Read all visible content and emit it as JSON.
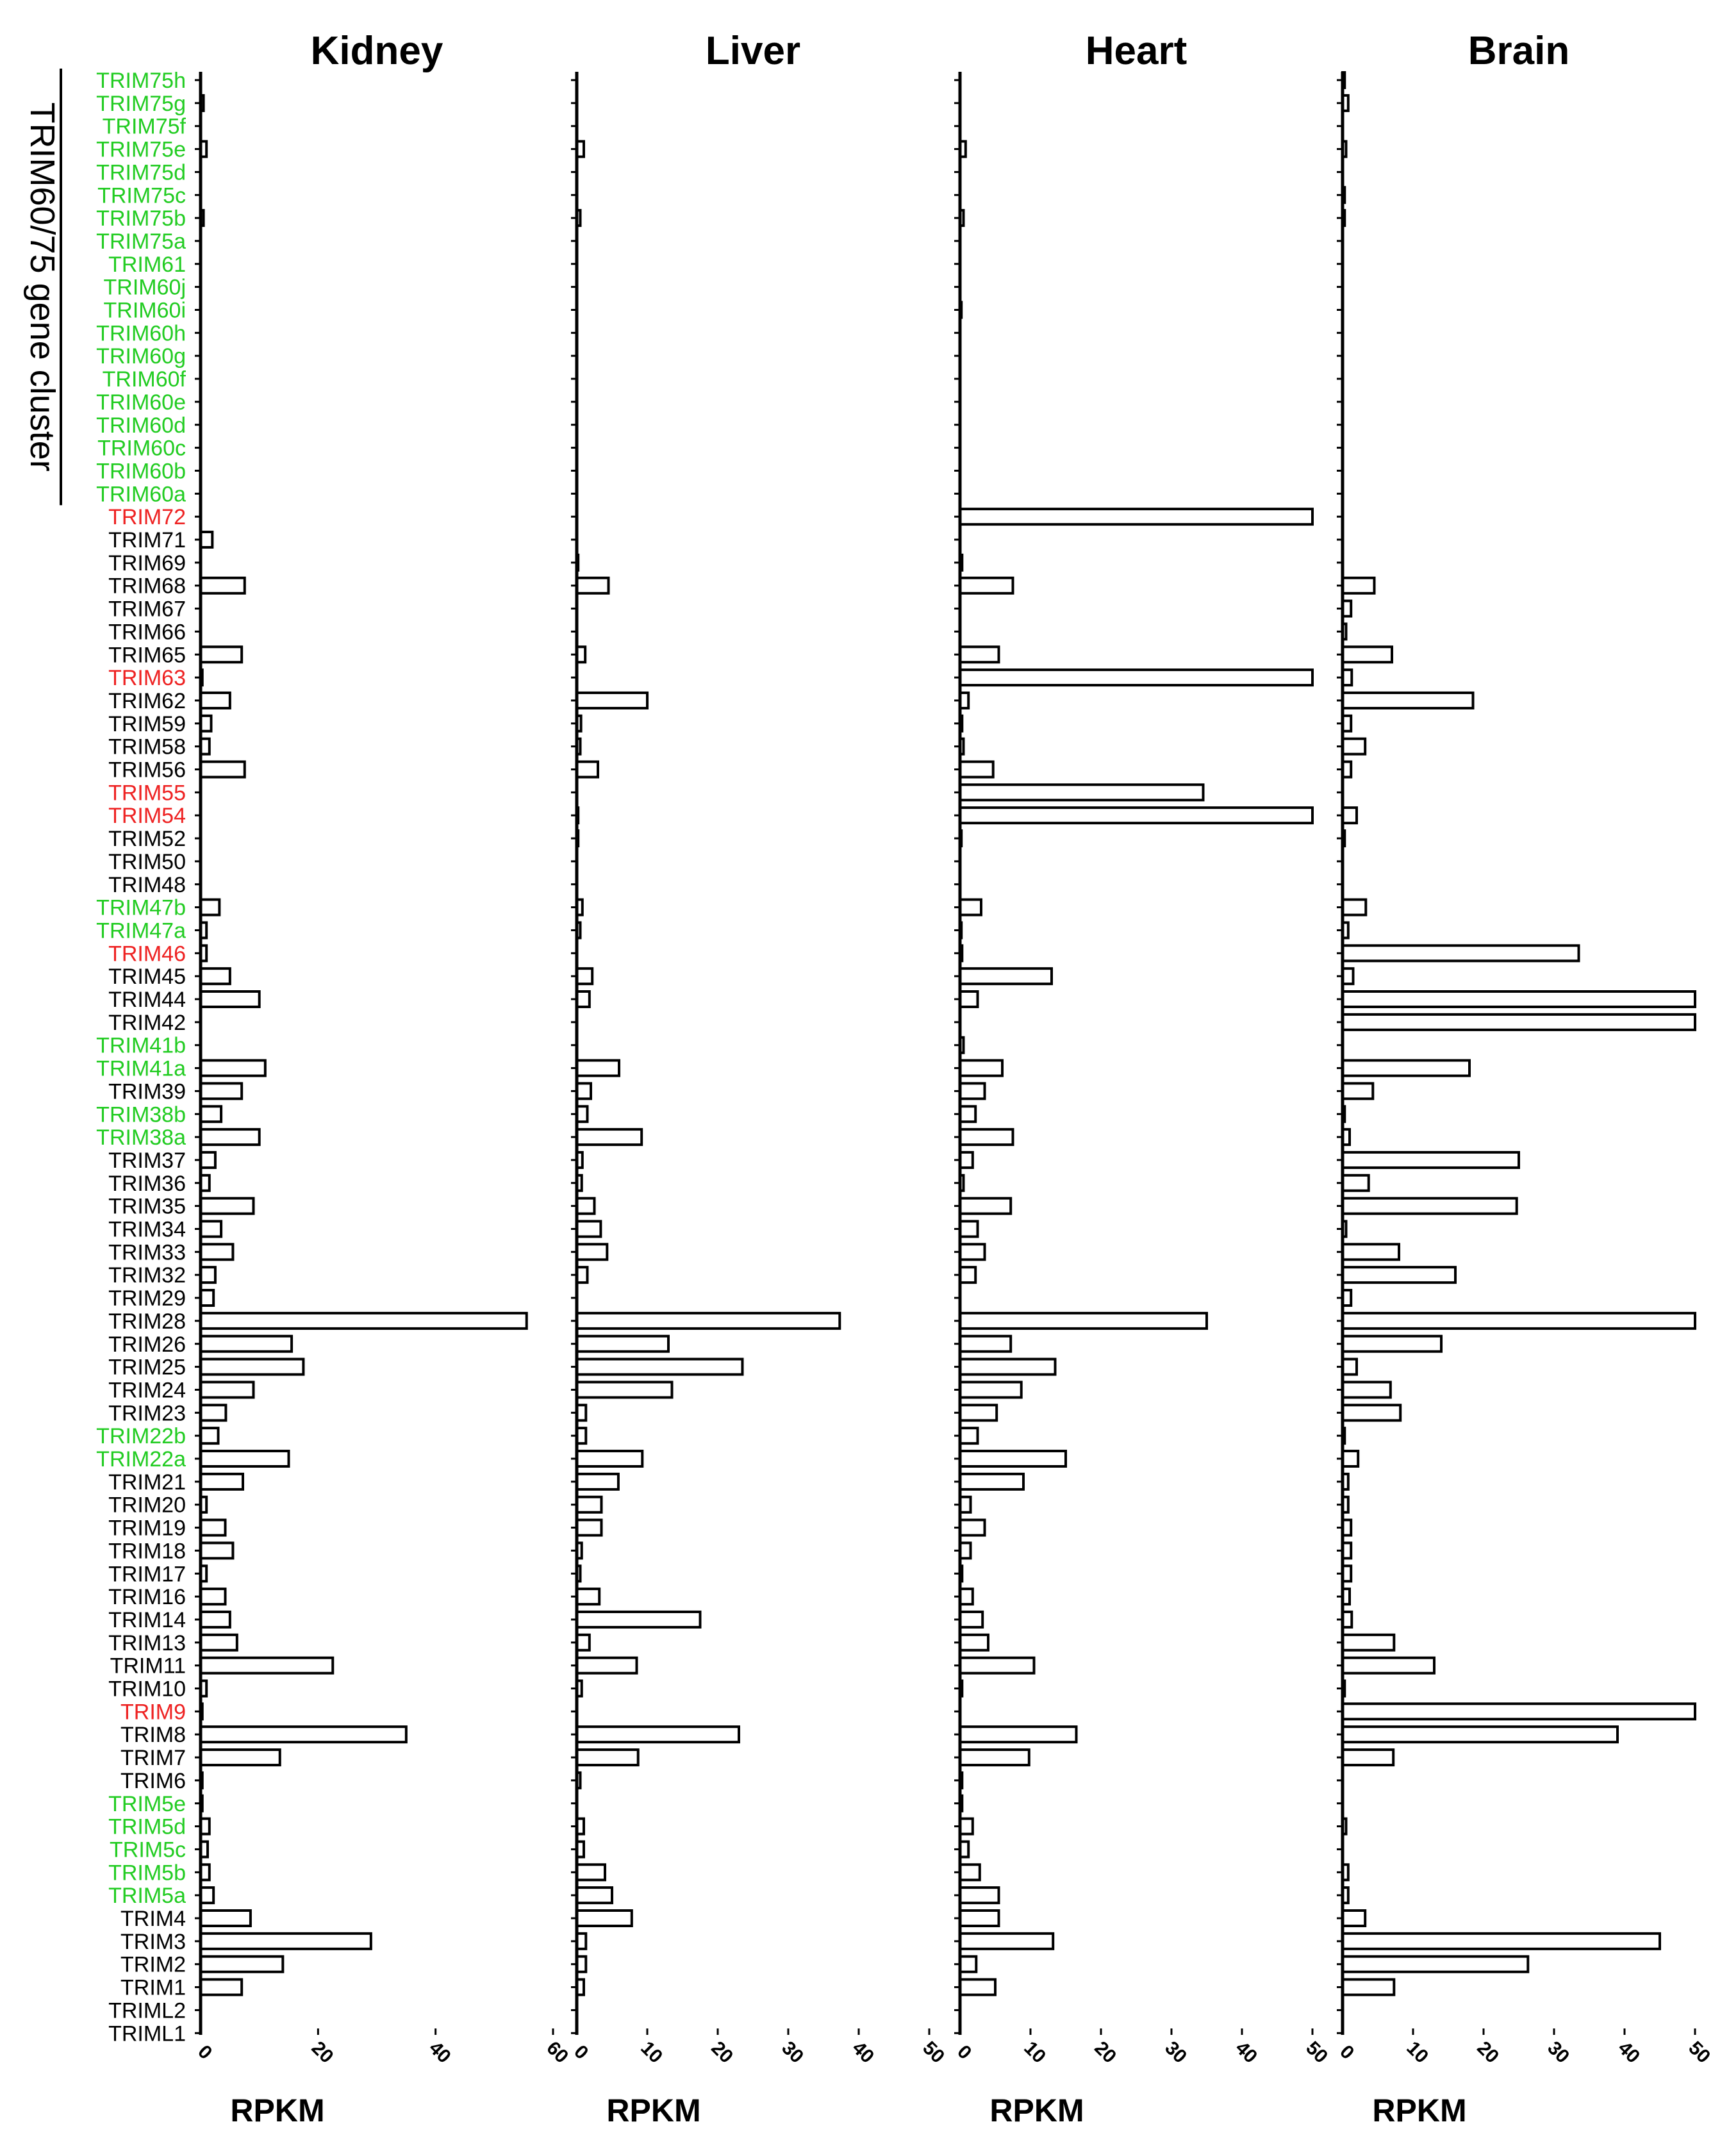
{
  "colors": {
    "default_label": "#000000",
    "cluster_label": "#22cc22",
    "highlight_label": "#ee2222",
    "bar_fill": "#ffffff",
    "bar_stroke": "#000000"
  },
  "cluster_annotation": "TRIM60/75 gene cluster",
  "categories": [
    "TRIM75h",
    "TRIM75g",
    "TRIM75f",
    "TRIM75e",
    "TRIM75d",
    "TRIM75c",
    "TRIM75b",
    "TRIM75a",
    "TRIM61",
    "TRIM60j",
    "TRIM60i",
    "TRIM60h",
    "TRIM60g",
    "TRIM60f",
    "TRIM60e",
    "TRIM60d",
    "TRIM60c",
    "TRIM60b",
    "TRIM60a",
    "TRIM72",
    "TRIM71",
    "TRIM69",
    "TRIM68",
    "TRIM67",
    "TRIM66",
    "TRIM65",
    "TRIM63",
    "TRIM62",
    "TRIM59",
    "TRIM58",
    "TRIM56",
    "TRIM55",
    "TRIM54",
    "TRIM52",
    "TRIM50",
    "TRIM48",
    "TRIM47b",
    "TRIM47a",
    "TRIM46",
    "TRIM45",
    "TRIM44",
    "TRIM42",
    "TRIM41b",
    "TRIM41a",
    "TRIM39",
    "TRIM38b",
    "TRIM38a",
    "TRIM37",
    "TRIM36",
    "TRIM35",
    "TRIM34",
    "TRIM33",
    "TRIM32",
    "TRIM29",
    "TRIM28",
    "TRIM26",
    "TRIM25",
    "TRIM24",
    "TRIM23",
    "TRIM22b",
    "TRIM22a",
    "TRIM21",
    "TRIM20",
    "TRIM19",
    "TRIM18",
    "TRIM17",
    "TRIM16",
    "TRIM14",
    "TRIM13",
    "TRIM11",
    "TRIM10",
    "TRIM9",
    "TRIM8",
    "TRIM7",
    "TRIM6",
    "TRIM5e",
    "TRIM5d",
    "TRIM5c",
    "TRIM5b",
    "TRIM5a",
    "TRIM4",
    "TRIM3",
    "TRIM2",
    "TRIM1",
    "TRIML2",
    "TRIML1"
  ],
  "category_color_groups": {
    "cluster": [
      "TRIM75h",
      "TRIM75g",
      "TRIM75f",
      "TRIM75e",
      "TRIM75d",
      "TRIM75c",
      "TRIM75b",
      "TRIM75a",
      "TRIM61",
      "TRIM60j",
      "TRIM60i",
      "TRIM60h",
      "TRIM60g",
      "TRIM60f",
      "TRIM60e",
      "TRIM60d",
      "TRIM60c",
      "TRIM60b",
      "TRIM60a",
      "TRIM47b",
      "TRIM47a",
      "TRIM41b",
      "TRIM41a",
      "TRIM38b",
      "TRIM38a",
      "TRIM22b",
      "TRIM22a",
      "TRIM5e",
      "TRIM5d",
      "TRIM5c",
      "TRIM5b",
      "TRIM5a"
    ],
    "highlight": [
      "TRIM72",
      "TRIM63",
      "TRIM55",
      "TRIM54",
      "TRIM46",
      "TRIM9"
    ]
  },
  "chart_data": [
    {
      "type": "bar",
      "orientation": "horizontal",
      "title": "Kidney",
      "xlabel": "RPKM",
      "xlim": [
        0,
        60
      ],
      "xticks": [
        "0",
        "20",
        "40",
        "60"
      ],
      "values": [
        0,
        0.5,
        0,
        1,
        0,
        0,
        0.5,
        0,
        0,
        0,
        0,
        0,
        0,
        0,
        0,
        0,
        0,
        0,
        0,
        0,
        2,
        0,
        7.5,
        0,
        0,
        7,
        0.3,
        5,
        1.8,
        1.5,
        7.5,
        0,
        0,
        0,
        0,
        0,
        3.2,
        1,
        1,
        5,
        10,
        0,
        0,
        11,
        7,
        3.5,
        10,
        2.5,
        1.5,
        9,
        3.5,
        5.5,
        2.5,
        2.2,
        55.5,
        15.5,
        17.5,
        9,
        4.3,
        3,
        15,
        7.2,
        1,
        4.2,
        5.5,
        1,
        4.2,
        5,
        6.2,
        22.5,
        1,
        0.3,
        35,
        13.5,
        0.3,
        0.3,
        1.5,
        1.2,
        1.5,
        2.2,
        8.5,
        29,
        14,
        7,
        0,
        0
      ],
      "values_clipped": []
    },
    {
      "type": "bar",
      "orientation": "horizontal",
      "title": "Liver",
      "xlabel": "RPKM",
      "xlim": [
        0,
        50
      ],
      "xticks": [
        "0",
        "10",
        "20",
        "30",
        "40",
        "50"
      ],
      "values": [
        0,
        0,
        0,
        1,
        0,
        0,
        0.5,
        0,
        0,
        0,
        0,
        0,
        0,
        0,
        0,
        0,
        0,
        0,
        0,
        0,
        0,
        0.2,
        4.5,
        0,
        0,
        1.2,
        0,
        10,
        0.6,
        0.5,
        3,
        0,
        0.2,
        0.2,
        0,
        0,
        0.8,
        0.5,
        0,
        2.2,
        1.8,
        0,
        0,
        6,
        2,
        1.5,
        9.2,
        0.8,
        0.7,
        2.5,
        3.4,
        4.3,
        1.5,
        0,
        37.3,
        13,
        23.5,
        13.5,
        1.3,
        1.3,
        9.3,
        5.9,
        3.5,
        3.5,
        0.7,
        0.5,
        3.2,
        17.5,
        1.8,
        8.5,
        0.7,
        0,
        23,
        8.7,
        0.5,
        0,
        1,
        1,
        4,
        5,
        7.8,
        1.3,
        1.3,
        1,
        0,
        0
      ],
      "values_clipped": []
    },
    {
      "type": "bar",
      "orientation": "horizontal",
      "title": "Heart",
      "xlabel": "RPKM",
      "xlim": [
        0,
        50
      ],
      "xticks": [
        "0",
        "10",
        "20",
        "30",
        "40",
        "50"
      ],
      "values": [
        0,
        0,
        0,
        0.8,
        0,
        0,
        0.5,
        0,
        0,
        0,
        0.2,
        0,
        0,
        0,
        0,
        0,
        0,
        0,
        0,
        50,
        0,
        0.3,
        7.5,
        0,
        0,
        5.5,
        50,
        1.2,
        0.3,
        0.5,
        4.7,
        34.5,
        50,
        0.2,
        0,
        0,
        3,
        0.2,
        0.3,
        13,
        2.5,
        0,
        0.5,
        6,
        3.5,
        2.2,
        7.5,
        1.8,
        0.5,
        7.2,
        2.5,
        3.5,
        2.2,
        0,
        35,
        7.2,
        13.5,
        8.7,
        5.2,
        2.5,
        15,
        9,
        1.5,
        3.5,
        1.5,
        0.3,
        1.8,
        3.2,
        4,
        10.5,
        0.3,
        0,
        16.5,
        9.8,
        0.3,
        0.3,
        1.8,
        1.2,
        2.8,
        5.5,
        5.5,
        13.2,
        2.3,
        5,
        0,
        0
      ],
      "values_clipped": [
        "TRIM72",
        "TRIM63",
        "TRIM54"
      ]
    },
    {
      "type": "bar",
      "orientation": "horizontal",
      "title": "Brain",
      "xlabel": "RPKM",
      "xlim": [
        0,
        50
      ],
      "xticks": [
        "0",
        "10",
        "20",
        "30",
        "40",
        "50"
      ],
      "values": [
        0.3,
        0.8,
        0,
        0.5,
        0,
        0.3,
        0.3,
        0,
        0,
        0,
        0,
        0,
        0,
        0,
        0,
        0,
        0,
        0,
        0,
        0,
        0,
        0,
        4.5,
        1.2,
        0.5,
        7,
        1.3,
        18.5,
        1.2,
        3.2,
        1.2,
        0,
        2,
        0.3,
        0,
        0,
        3.3,
        0.8,
        33.5,
        1.5,
        50,
        50,
        0,
        18,
        4.3,
        0.3,
        1,
        25,
        3.7,
        24.7,
        0.5,
        8,
        16,
        1.2,
        50,
        14,
        2,
        6.8,
        8.2,
        0.3,
        2.2,
        0.8,
        0.8,
        1.2,
        1.2,
        1.2,
        1,
        1.3,
        7.3,
        13,
        0.3,
        50,
        39,
        7.2,
        0,
        0,
        0.5,
        0,
        0.8,
        0.8,
        3.2,
        45,
        26.3,
        7.3,
        0,
        0
      ],
      "values_clipped": [
        "TRIM44",
        "TRIM42",
        "TRIM28",
        "TRIM9"
      ]
    }
  ]
}
